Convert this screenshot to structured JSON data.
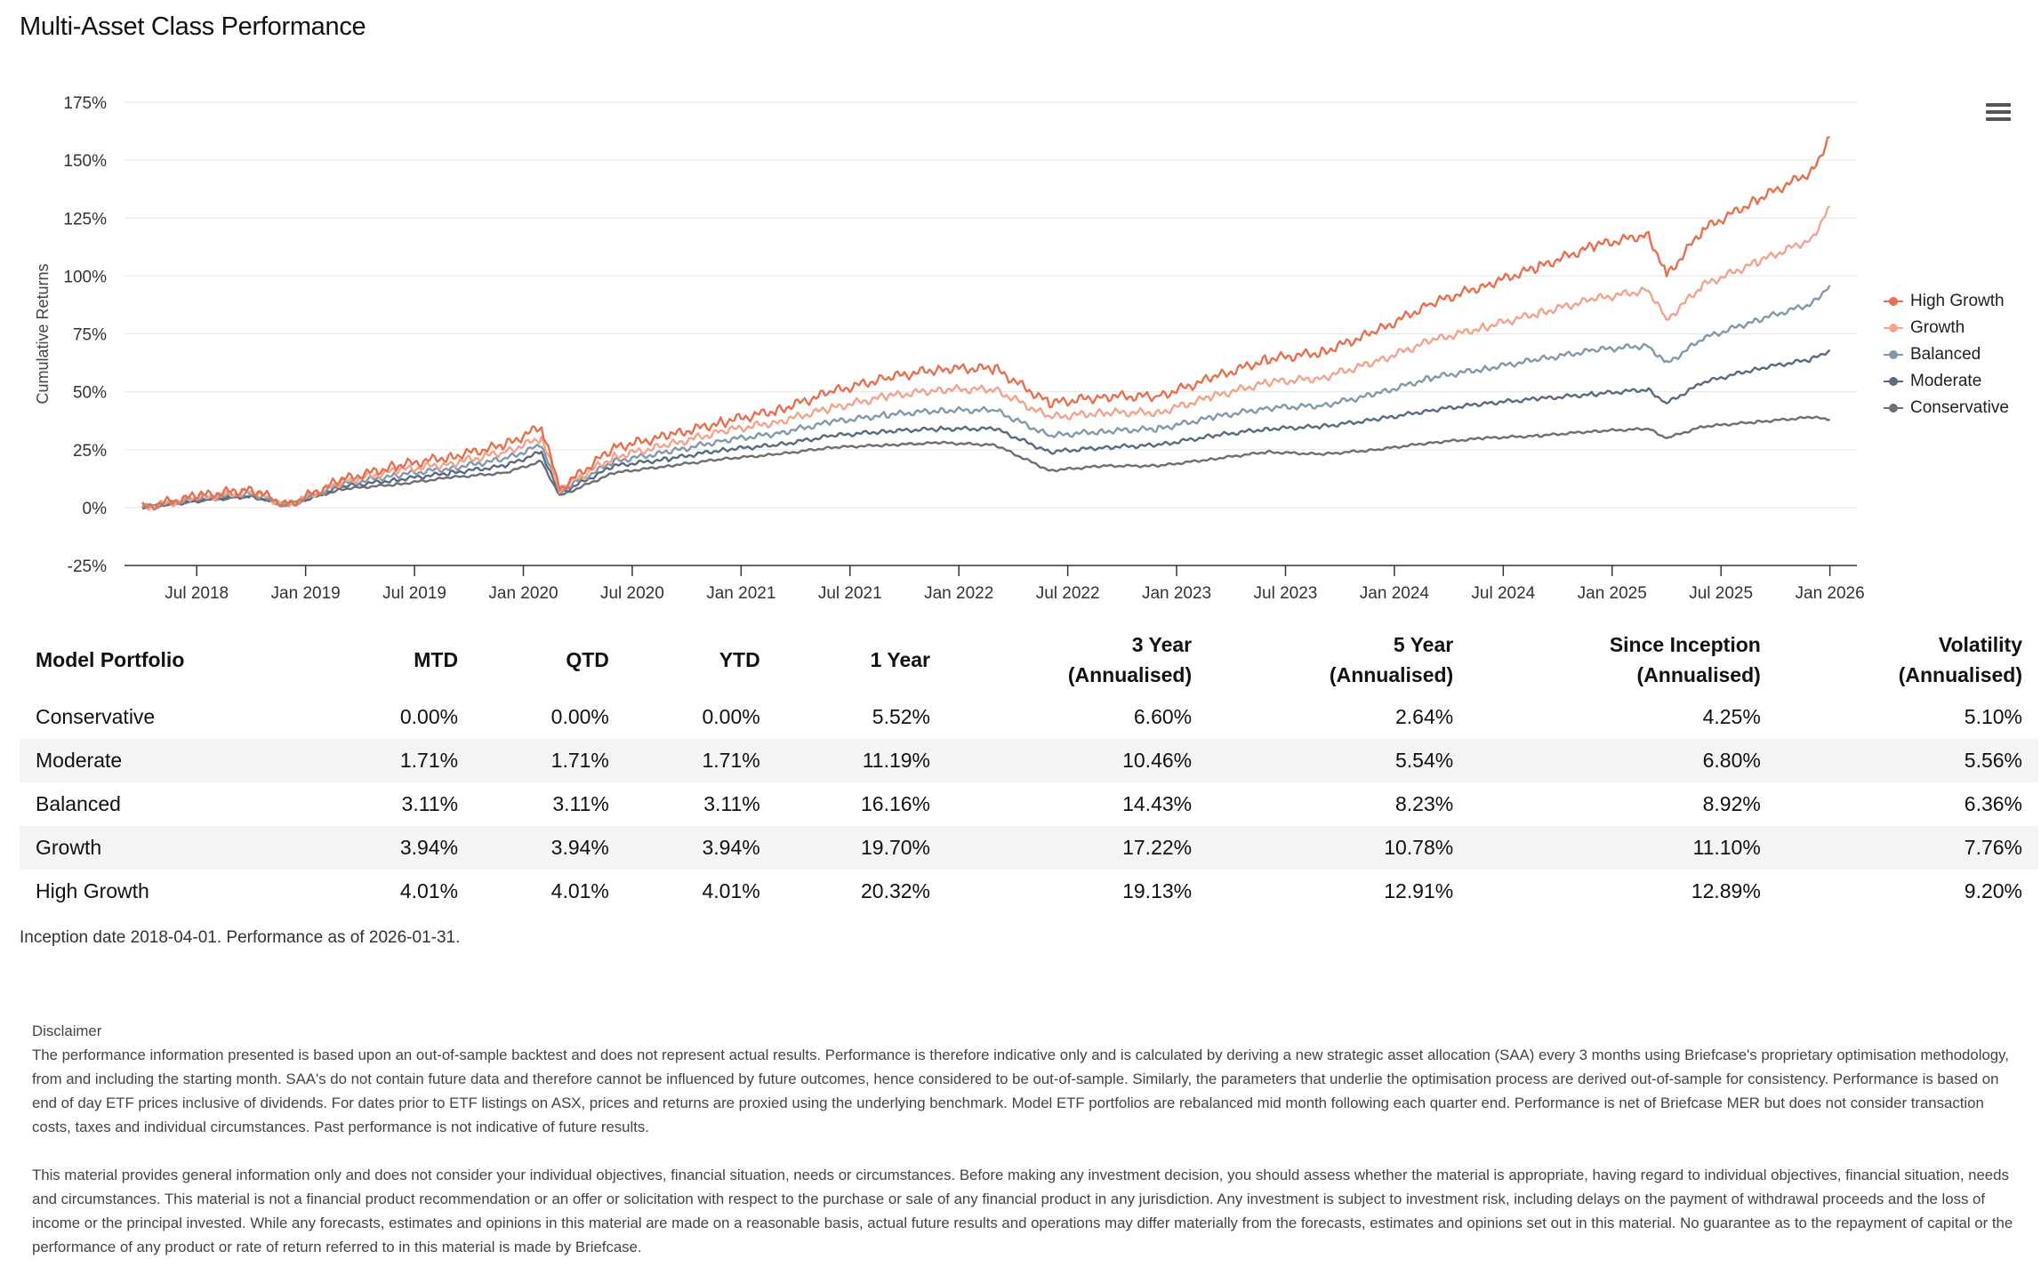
{
  "title": "Multi-Asset Class Performance",
  "menu_icon": "hamburger-menu-icon",
  "chart_data": {
    "type": "line",
    "ylabel": "Cumulative Returns",
    "xlabel": "",
    "ylim": [
      -25,
      175
    ],
    "y_ticks": [
      "175%",
      "150%",
      "125%",
      "100%",
      "75%",
      "50%",
      "25%",
      "0%",
      "-25%"
    ],
    "x_ticks": [
      "Jul 2018",
      "Jan 2019",
      "Jul 2019",
      "Jan 2020",
      "Jul 2020",
      "Jan 2021",
      "Jul 2021",
      "Jan 2022",
      "Jul 2022",
      "Jan 2023",
      "Jul 2023",
      "Jan 2024",
      "Jul 2024",
      "Jan 2025",
      "Jul 2025",
      "Jan 2026"
    ],
    "grid": true,
    "legend_position": "right",
    "x": [
      "2018-04",
      "2018-07",
      "2018-10",
      "2018-12",
      "2019-03",
      "2019-06",
      "2019-09",
      "2019-12",
      "2020-02",
      "2020-03",
      "2020-06",
      "2020-09",
      "2020-12",
      "2021-03",
      "2021-06",
      "2021-09",
      "2021-12",
      "2022-03",
      "2022-06",
      "2022-09",
      "2022-12",
      "2023-03",
      "2023-06",
      "2023-09",
      "2023-12",
      "2024-03",
      "2024-06",
      "2024-09",
      "2024-12",
      "2025-03",
      "2025-04",
      "2025-06",
      "2025-09",
      "2025-12",
      "2026-01"
    ],
    "series": [
      {
        "name": "High Growth",
        "color": "#e8704f",
        "values": [
          0,
          5,
          8,
          1,
          12,
          18,
          22,
          27,
          35,
          8,
          26,
          31,
          37,
          42,
          50,
          56,
          60,
          60,
          45,
          48,
          48,
          56,
          64,
          67,
          76,
          88,
          96,
          104,
          113,
          118,
          100,
          120,
          133,
          145,
          160
        ]
      },
      {
        "name": "Growth",
        "color": "#f2a48c",
        "values": [
          0,
          4,
          7,
          1,
          11,
          16,
          19,
          24,
          30,
          8,
          22,
          27,
          33,
          37,
          43,
          48,
          51,
          51,
          39,
          41,
          41,
          48,
          54,
          56,
          63,
          72,
          78,
          84,
          90,
          94,
          81,
          96,
          106,
          116,
          130
        ]
      },
      {
        "name": "Balanced",
        "color": "#8199ab",
        "values": [
          0,
          4,
          6,
          1,
          10,
          14,
          17,
          21,
          27,
          7,
          20,
          24,
          29,
          32,
          37,
          40,
          42,
          42,
          31,
          33,
          34,
          39,
          43,
          44,
          49,
          56,
          60,
          64,
          68,
          70,
          62,
          73,
          81,
          88,
          96
        ]
      },
      {
        "name": "Moderate",
        "color": "#5b6a80",
        "values": [
          0,
          3,
          5,
          1,
          9,
          12,
          15,
          18,
          24,
          6,
          18,
          21,
          25,
          27,
          31,
          33,
          34,
          34,
          24,
          26,
          27,
          31,
          34,
          35,
          38,
          42,
          45,
          47,
          49,
          51,
          45,
          54,
          60,
          64,
          68
        ]
      },
      {
        "name": "Conservative",
        "color": "#6e6d78",
        "values": [
          0,
          3,
          5,
          1,
          8,
          10,
          13,
          15,
          20,
          5,
          15,
          18,
          21,
          23,
          26,
          27,
          28,
          27,
          16,
          18,
          18,
          21,
          24,
          23,
          25,
          28,
          30,
          31,
          33,
          34,
          30,
          35,
          37,
          39,
          38
        ]
      }
    ]
  },
  "table": {
    "headers": [
      {
        "l1": "Model Portfolio",
        "l2": ""
      },
      {
        "l1": "MTD",
        "l2": ""
      },
      {
        "l1": "QTD",
        "l2": ""
      },
      {
        "l1": "YTD",
        "l2": ""
      },
      {
        "l1": "1 Year",
        "l2": ""
      },
      {
        "l1": "3 Year",
        "l2": "(Annualised)"
      },
      {
        "l1": "5 Year",
        "l2": "(Annualised)"
      },
      {
        "l1": "Since Inception",
        "l2": "(Annualised)"
      },
      {
        "l1": "Volatility",
        "l2": "(Annualised)"
      }
    ],
    "rows": [
      [
        "Conservative",
        "0.00%",
        "0.00%",
        "0.00%",
        "5.52%",
        "6.60%",
        "2.64%",
        "4.25%",
        "5.10%"
      ],
      [
        "Moderate",
        "1.71%",
        "1.71%",
        "1.71%",
        "11.19%",
        "10.46%",
        "5.54%",
        "6.80%",
        "5.56%"
      ],
      [
        "Balanced",
        "3.11%",
        "3.11%",
        "3.11%",
        "16.16%",
        "14.43%",
        "8.23%",
        "8.92%",
        "6.36%"
      ],
      [
        "Growth",
        "3.94%",
        "3.94%",
        "3.94%",
        "19.70%",
        "17.22%",
        "10.78%",
        "11.10%",
        "7.76%"
      ],
      [
        "High Growth",
        "4.01%",
        "4.01%",
        "4.01%",
        "20.32%",
        "19.13%",
        "12.91%",
        "12.89%",
        "9.20%"
      ]
    ]
  },
  "note": "Inception date 2018-04-01. Performance as of 2026-01-31.",
  "disclaimer": {
    "heading": "Disclaimer",
    "p1": "The performance information presented is based upon an out-of-sample backtest and does not represent actual results. Performance is therefore indicative only and is calculated by deriving a new strategic asset allocation (SAA) every 3 months using Briefcase's proprietary optimisation methodology, from and including the starting month. SAA's do not contain future data and therefore cannot be influenced by future outcomes, hence considered to be out-of-sample. Similarly, the parameters that underlie the optimisation process are derived out-of-sample for consistency. Performance is based on end of day ETF prices inclusive of dividends. For dates prior to ETF listings on ASX, prices and returns are proxied using the underlying benchmark. Model ETF portfolios are rebalanced mid month following each quarter end. Performance is net of Briefcase MER but does not consider transaction costs, taxes and individual circumstances. Past performance is not indicative of future results.",
    "p2": "This material provides general information only and does not consider your individual objectives, financial situation, needs or circumstances. Before making any investment decision, you should assess whether the material is appropriate, having regard to individual objectives, financial situation, needs and circumstances. This material is not a financial product recommendation or an offer or solicitation with respect to the purchase or sale of any financial product in any jurisdiction. Any investment is subject to investment risk, including delays on the payment of withdrawal proceeds and the loss of income or the principal invested. While any forecasts, estimates and opinions in this material are made on a reasonable basis, actual future results and operations may differ materially from the forecasts, estimates and opinions set out in this material. No guarantee as to the repayment of capital or the performance of any product or rate of return referred to in this material is made by Briefcase."
  }
}
